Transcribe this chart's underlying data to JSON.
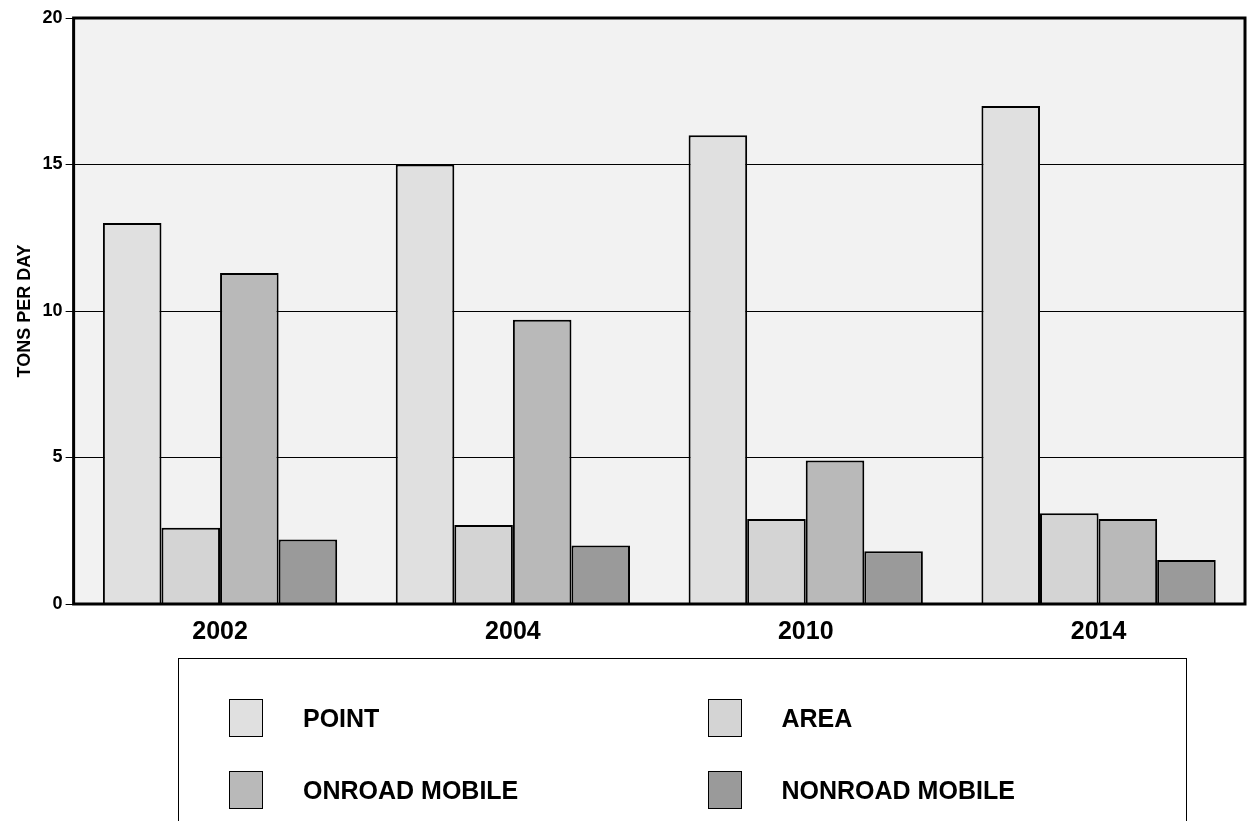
{
  "chart_data": {
    "type": "bar",
    "ylabel": "TONS PER DAY",
    "categories": [
      "2002",
      "2004",
      "2010",
      "2014"
    ],
    "series": [
      {
        "name": "POINT",
        "color": "#e0e0e0",
        "values": [
          13,
          15,
          16,
          17
        ]
      },
      {
        "name": "AREA",
        "color": "#d4d4d4",
        "values": [
          2.6,
          2.7,
          2.9,
          3.1
        ]
      },
      {
        "name": "ONROAD MOBILE",
        "color": "#b9b9b9",
        "values": [
          11.3,
          9.7,
          4.9,
          2.9
        ]
      },
      {
        "name": "NONROAD MOBILE",
        "color": "#9a9a9a",
        "values": [
          2.2,
          2.0,
          1.8,
          1.5
        ]
      }
    ],
    "ylim": [
      0,
      20
    ],
    "yticks": [
      0,
      5,
      10,
      15,
      20
    ],
    "grid": "y",
    "legend": "bottom"
  }
}
